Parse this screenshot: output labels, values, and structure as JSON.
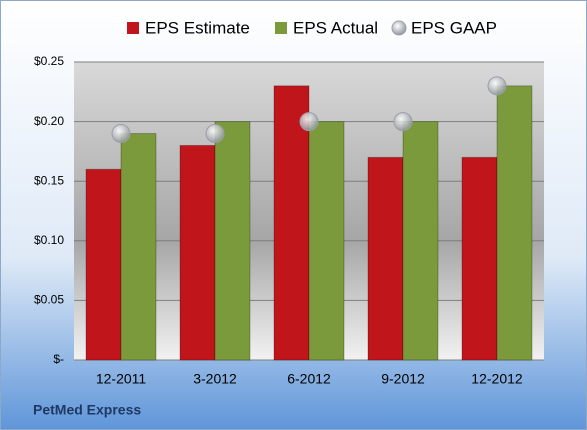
{
  "chart_data": {
    "type": "bar",
    "categories": [
      "12-2011",
      "3-2012",
      "6-2012",
      "9-2012",
      "12-2012"
    ],
    "series": [
      {
        "name": "EPS Estimate",
        "color": "#c0161b",
        "values": [
          0.16,
          0.18,
          0.23,
          0.17,
          0.17
        ]
      },
      {
        "name": "EPS Actual",
        "color": "#7a9a3c",
        "values": [
          0.19,
          0.2,
          0.2,
          0.2,
          0.23
        ]
      },
      {
        "name": "EPS GAAP",
        "color": "#b8bcc4",
        "type": "scatter",
        "values": [
          0.19,
          0.19,
          0.2,
          0.2,
          0.23
        ]
      }
    ],
    "ylim": [
      0,
      0.25
    ],
    "yticks": [
      {
        "value": 0,
        "label": "$-"
      },
      {
        "value": 0.05,
        "label": "$0.05"
      },
      {
        "value": 0.1,
        "label": "$0.10"
      },
      {
        "value": 0.15,
        "label": "$0.15"
      },
      {
        "value": 0.2,
        "label": "$0.20"
      },
      {
        "value": 0.25,
        "label": "$0.25"
      }
    ],
    "grid": true,
    "legend": "top",
    "footer": "PetMed Express"
  }
}
